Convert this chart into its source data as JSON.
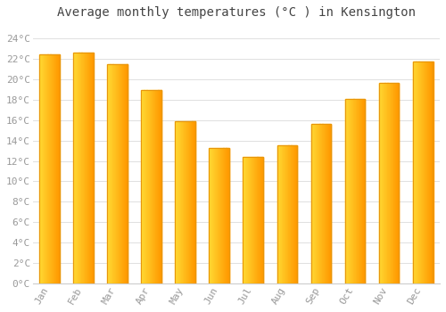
{
  "title": "Average monthly temperatures (°C ) in Kensington",
  "months": [
    "Jan",
    "Feb",
    "Mar",
    "Apr",
    "May",
    "Jun",
    "Jul",
    "Aug",
    "Sep",
    "Oct",
    "Nov",
    "Dec"
  ],
  "values": [
    22.5,
    22.6,
    21.5,
    19.0,
    15.9,
    13.3,
    12.4,
    13.5,
    15.6,
    18.1,
    19.7,
    21.8
  ],
  "bar_color_left": "#FFD966",
  "bar_color_right": "#FFA500",
  "bar_edge_color": "#E8960A",
  "ytick_labels": [
    "0°C",
    "2°C",
    "4°C",
    "6°C",
    "8°C",
    "10°C",
    "12°C",
    "14°C",
    "16°C",
    "18°C",
    "20°C",
    "22°C",
    "24°C"
  ],
  "ytick_values": [
    0,
    2,
    4,
    6,
    8,
    10,
    12,
    14,
    16,
    18,
    20,
    22,
    24
  ],
  "ylim": [
    0,
    25.5
  ],
  "background_color": "#FFFFFF",
  "grid_color": "#E0E0E0",
  "title_fontsize": 10,
  "tick_fontsize": 8,
  "tick_color": "#999999",
  "font_family": "monospace",
  "bar_width": 0.6
}
